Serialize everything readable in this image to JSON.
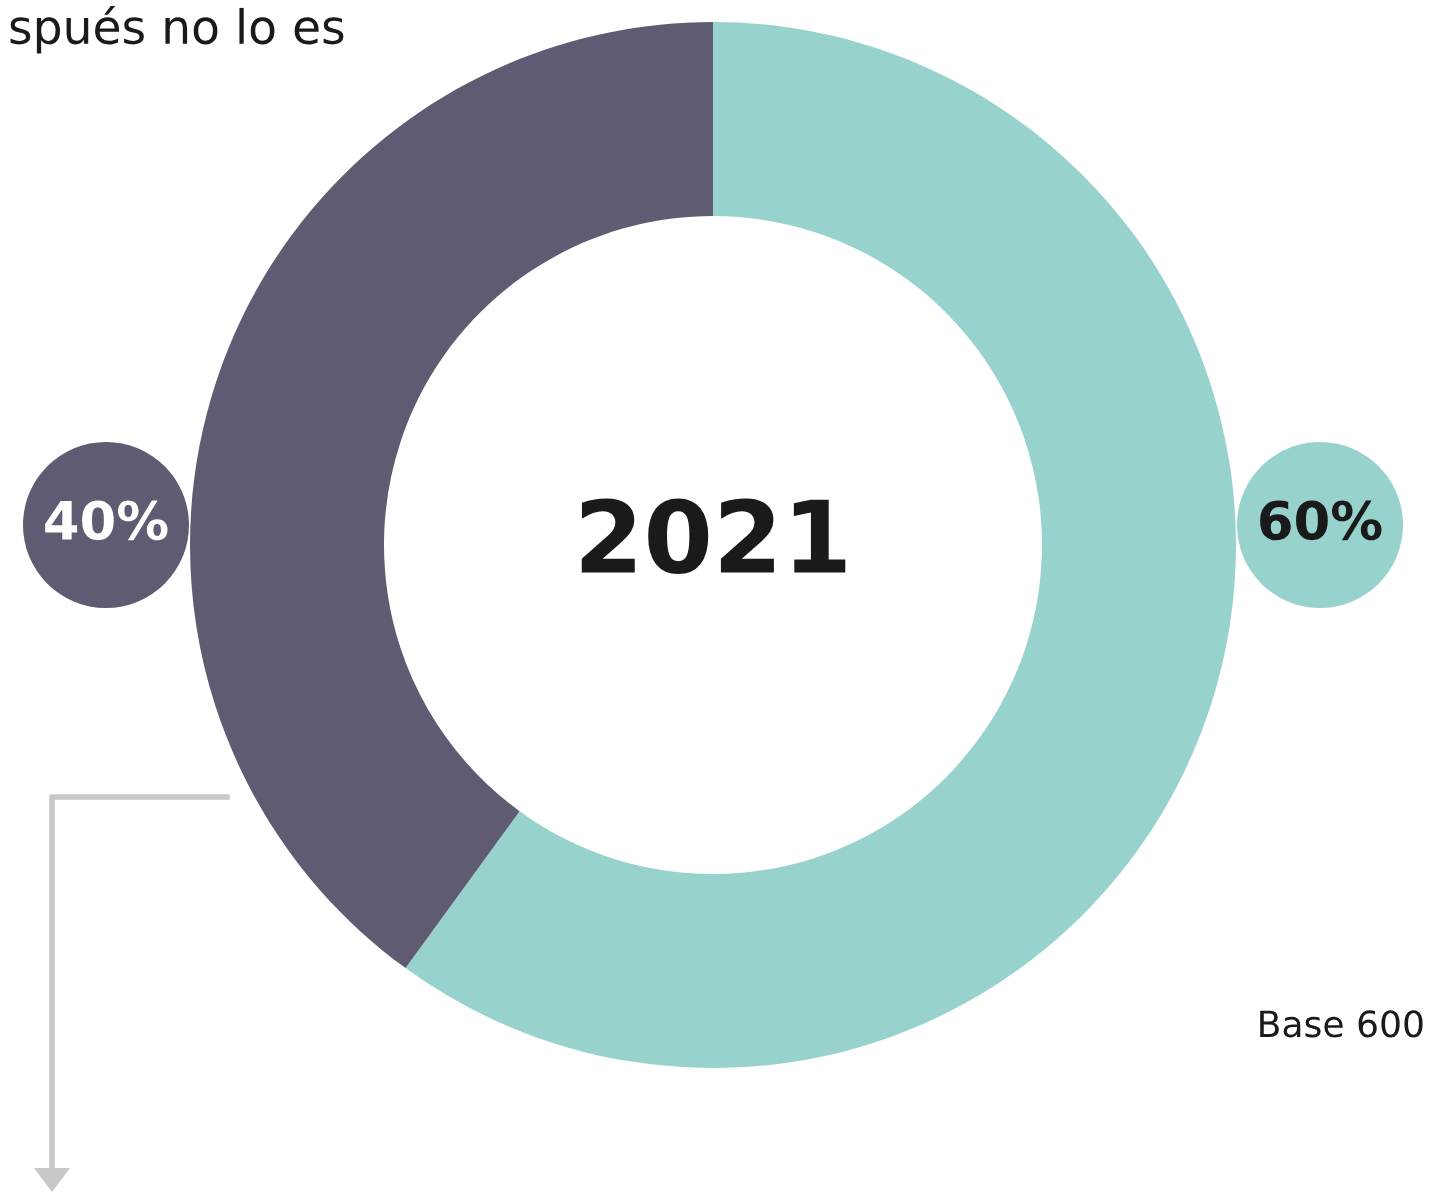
{
  "chart_data": {
    "type": "donut",
    "title": "spués no lo es",
    "categories": [
      null,
      null
    ],
    "values": [
      60,
      40
    ],
    "colors": [
      "#97d2cd",
      "#5f5b73"
    ],
    "value_labels": [
      "60%",
      "40%"
    ],
    "annotations": [
      "2021",
      "Base 600"
    ]
  }
}
